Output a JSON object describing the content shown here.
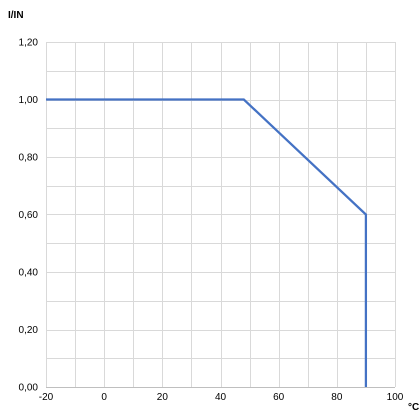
{
  "chart_data": {
    "type": "line",
    "ylabel": "I/IN",
    "xlabel": "°C",
    "xlim": [
      -20,
      100
    ],
    "ylim": [
      0,
      1.2
    ],
    "x_ticks": [
      -20,
      0,
      20,
      40,
      60,
      80,
      100
    ],
    "x_tick_labels": [
      "-20",
      "0",
      "20",
      "40",
      "60",
      "80",
      "100"
    ],
    "y_ticks": [
      0,
      0.2,
      0.4,
      0.6,
      0.8,
      1.0,
      1.2
    ],
    "y_tick_labels": [
      "0,00",
      "0,20",
      "0,40",
      "0,60",
      "0,80",
      "1,00",
      "1,20"
    ],
    "grid": true,
    "minor_grid": true,
    "series": [
      {
        "color": "#4472c4",
        "points": [
          [
            -20,
            1.0
          ],
          [
            48,
            1.0
          ],
          [
            90,
            0.6
          ],
          [
            90,
            0.0
          ]
        ]
      }
    ]
  }
}
